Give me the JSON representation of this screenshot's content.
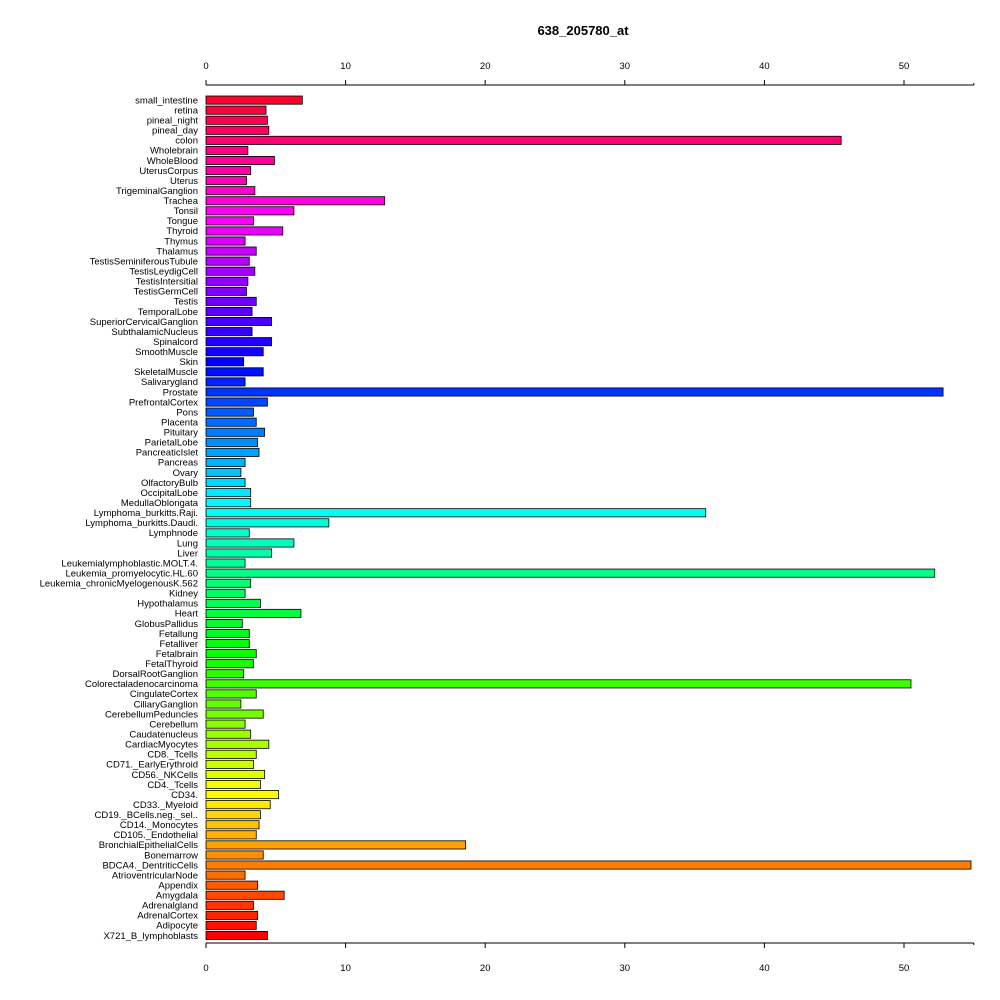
{
  "chart_data": {
    "type": "bar",
    "orientation": "horizontal",
    "title": "638_205780_at",
    "xlabel": "",
    "ylabel": "",
    "xlim": [
      0,
      55
    ],
    "x_ticks": [
      0,
      10,
      20,
      30,
      40,
      50
    ],
    "grid": false,
    "legend": "none",
    "categories": [
      "small_intestine",
      "retina",
      "pineal_night",
      "pineal_day",
      "colon",
      "Wholebrain",
      "WholeBlood",
      "UterusCorpus",
      "Uterus",
      "TrigeminalGanglion",
      "Trachea",
      "Tonsil",
      "Tongue",
      "Thyroid",
      "Thymus",
      "Thalamus",
      "TestisSeminiferousTubule",
      "TestisLeydigCell",
      "TestisIntersitial",
      "TestisGermCell",
      "Testis",
      "TemporalLobe",
      "SuperiorCervicalGanglion",
      "SubthalamicNucleus",
      "Spinalcord",
      "SmoothMuscle",
      "Skin",
      "SkeletalMuscle",
      "Salivarygland",
      "Prostate",
      "PrefrontalCortex",
      "Pons",
      "Placenta",
      "Pituitary",
      "ParietalLobe",
      "PancreaticIslet",
      "Pancreas",
      "Ovary",
      "OlfactoryBulb",
      "OccipitalLobe",
      "MedullaOblongata",
      "Lymphoma_burkitts.Raji.",
      "Lymphoma_burkitts.Daudi.",
      "Lymphnode",
      "Lung",
      "Liver",
      "Leukemialymphoblastic.MOLT.4.",
      "Leukemia_promyelocytic.HL.60",
      "Leukemia_chronicMyelogenousK.562",
      "Kidney",
      "Hypothalamus",
      "Heart",
      "GlobusPallidus",
      "Fetallung",
      "Fetalliver",
      "Fetalbrain",
      "FetalThyroid",
      "DorsalRootGanglion",
      "Colorectaladenocarcinoma",
      "CingulateCortex",
      "CiliaryGanglion",
      "CerebellumPeduncles",
      "Cerebellum",
      "Caudatenucleus",
      "CardiacMyocytes",
      "CD8._Tcells",
      "CD71._EarlyErythroid",
      "CD56._NKCells",
      "CD4._Tcells",
      "CD34.",
      "CD33._Myeloid",
      "CD19._BCells.neg._sel..",
      "CD14._Monocytes",
      "CD105._Endothelial",
      "BronchialEpithelialCells",
      "Bonemarrow",
      "BDCA4._DentriticCells",
      "AtrioventricularNode",
      "Appendix",
      "Amygdala",
      "Adrenalgland",
      "AdrenalCortex",
      "Adipocyte",
      "X721_B_lymphoblasts"
    ],
    "values": [
      6.9,
      4.3,
      4.4,
      4.5,
      45.5,
      3.0,
      4.9,
      3.2,
      2.9,
      3.5,
      12.8,
      6.3,
      3.4,
      5.5,
      2.8,
      3.6,
      3.1,
      3.5,
      3.0,
      2.9,
      3.6,
      3.3,
      4.7,
      3.3,
      4.7,
      4.1,
      2.7,
      4.1,
      2.8,
      52.8,
      4.4,
      3.4,
      3.6,
      4.2,
      3.7,
      3.8,
      2.8,
      2.5,
      2.8,
      3.2,
      3.2,
      35.8,
      8.8,
      3.1,
      6.3,
      4.7,
      2.8,
      52.2,
      3.2,
      2.8,
      3.9,
      6.8,
      2.6,
      3.1,
      3.1,
      3.6,
      3.4,
      2.7,
      50.5,
      3.6,
      2.5,
      4.1,
      2.8,
      3.2,
      4.5,
      3.6,
      3.4,
      4.2,
      3.9,
      5.2,
      4.6,
      3.9,
      3.8,
      3.6,
      18.6,
      4.1,
      54.8,
      2.8,
      3.7,
      5.6,
      3.4,
      3.7,
      3.6,
      4.4
    ]
  }
}
